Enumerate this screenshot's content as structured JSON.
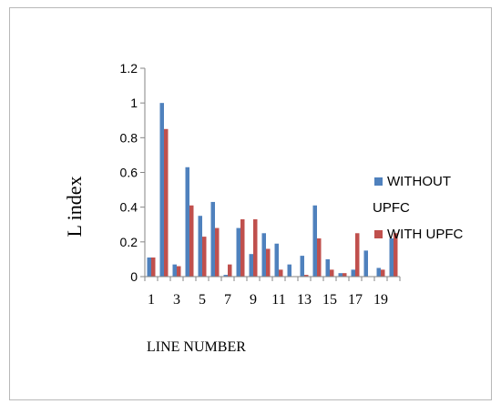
{
  "chart_data": {
    "type": "bar",
    "title": "",
    "xlabel": "LINE NUMBER",
    "ylabel": "L index",
    "ylim": [
      0,
      1.2
    ],
    "yticks": [
      0,
      0.2,
      0.4,
      0.6,
      0.8,
      1,
      1.2
    ],
    "ytick_labels": [
      "0",
      "0.2",
      "0.4",
      "0.6",
      "0.8",
      "1",
      "1.2"
    ],
    "categories": [
      1,
      2,
      3,
      4,
      5,
      6,
      7,
      8,
      9,
      10,
      11,
      12,
      13,
      14,
      15,
      16,
      17,
      18,
      19,
      20
    ],
    "xtick_labels": [
      "1",
      "3",
      "5",
      "7",
      "9",
      "11",
      "13",
      "15",
      "17",
      "19"
    ],
    "legend_position": "right",
    "grid": false,
    "series": [
      {
        "name": "WITHOUT UPFC",
        "color": "#4f81bd",
        "values": [
          0.11,
          1.0,
          0.07,
          0.63,
          0.35,
          0.43,
          0.01,
          0.28,
          0.13,
          0.25,
          0.19,
          0.07,
          0.12,
          0.41,
          0.1,
          0.02,
          0.04,
          0.15,
          0.05,
          0.22
        ]
      },
      {
        "name": "WITH UPFC",
        "color": "#c0504d",
        "values": [
          0.11,
          0.85,
          0.06,
          0.41,
          0.23,
          0.28,
          0.07,
          0.33,
          0.33,
          0.16,
          0.04,
          0.0,
          0.01,
          0.22,
          0.04,
          0.02,
          0.25,
          0.0,
          0.04,
          0.25
        ]
      }
    ],
    "legend_labels": {
      "without_line1": "WITHOUT",
      "without_line2": "UPFC",
      "with": "WITH UPFC"
    }
  }
}
